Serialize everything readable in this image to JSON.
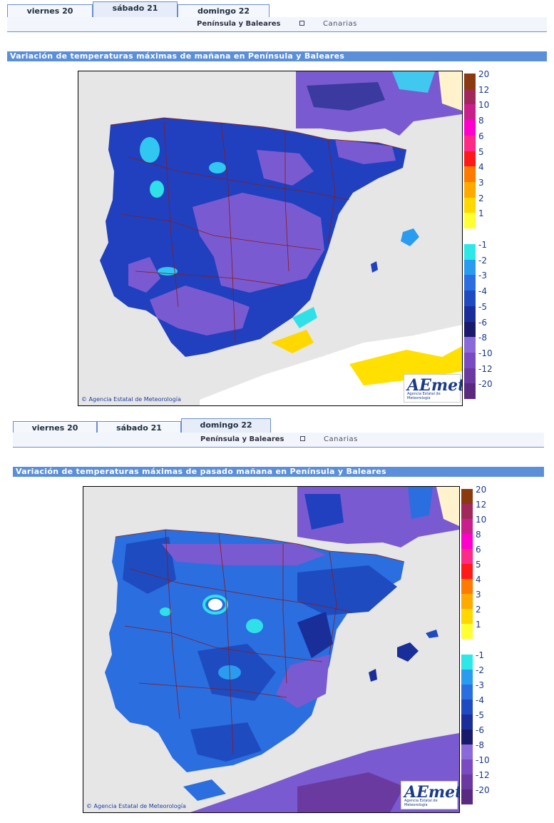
{
  "panel1": {
    "tabs": [
      {
        "label": "viernes 20",
        "active": false
      },
      {
        "label": "sábado 21",
        "active": true
      },
      {
        "label": "domingo 22",
        "active": false
      }
    ],
    "subnav": {
      "peninsula": "Península y Baleares",
      "canarias": "Canarias"
    },
    "title": "Variación de temperaturas máximas de mañana en Península y Baleares",
    "credit": "Agencia Estatal de Meteorología",
    "logo": {
      "brand": "AEmet",
      "subtitle": "Agencia Estatal de Meteorología"
    }
  },
  "panel2": {
    "tabs": [
      {
        "label": "viernes 20",
        "active": false
      },
      {
        "label": "sábado 21",
        "active": false
      },
      {
        "label": "domingo 22",
        "active": true
      }
    ],
    "subnav": {
      "peninsula": "Península y Baleares",
      "canarias": "Canarias"
    },
    "title": "Variación de temperaturas máximas de pasado mañana en Península y Baleares",
    "credit": "Agencia Estatal de Meteorología",
    "logo": {
      "brand": "AEmet",
      "subtitle": "Agencia Estatal de Meteorología"
    }
  },
  "legend": [
    {
      "label": "20",
      "color": "#8b3a0f"
    },
    {
      "label": "12",
      "color": "#a0285a"
    },
    {
      "label": "10",
      "color": "#c8208a"
    },
    {
      "label": "8",
      "color": "#ff00cc"
    },
    {
      "label": "6",
      "color": "#ff2a88"
    },
    {
      "label": "5",
      "color": "#ff1a1a"
    },
    {
      "label": "4",
      "color": "#ff7a00"
    },
    {
      "label": "3",
      "color": "#ffaa00"
    },
    {
      "label": "2",
      "color": "#ffd800"
    },
    {
      "label": "1",
      "color": "#ffff33"
    },
    {
      "label": "-1",
      "color": "#2ee8e8"
    },
    {
      "label": "-2",
      "color": "#2a9cf0"
    },
    {
      "label": "-3",
      "color": "#2a6ee0"
    },
    {
      "label": "-4",
      "color": "#1e4cc0"
    },
    {
      "label": "-5",
      "color": "#1a2e9a"
    },
    {
      "label": "-6",
      "color": "#1a1a6a"
    },
    {
      "label": "-8",
      "color": "#8a6ad8"
    },
    {
      "label": "-10",
      "color": "#7a4ac0"
    },
    {
      "label": "-12",
      "color": "#6a3aa0"
    },
    {
      "label": "-20",
      "color": "#5a2a80"
    }
  ]
}
